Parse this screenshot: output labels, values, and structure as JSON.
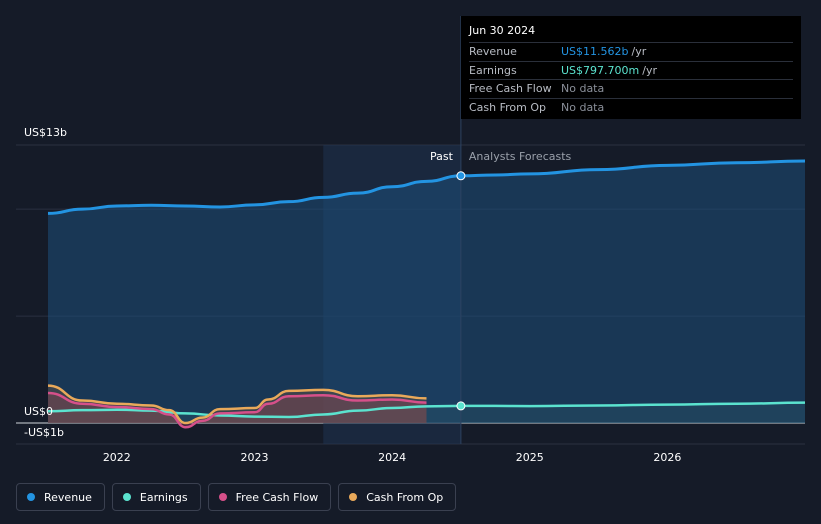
{
  "tooltip": {
    "date": "Jun 30 2024",
    "rows": [
      {
        "label": "Revenue",
        "value": "US$11.562b",
        "unit": "/yr",
        "color": "#2394e2"
      },
      {
        "label": "Earnings",
        "value": "US$797.700m",
        "unit": "/yr",
        "color": "#5be3cf"
      },
      {
        "label": "Free Cash Flow",
        "value": "No data",
        "unit": "",
        "color": "#8a8f99"
      },
      {
        "label": "Cash From Op",
        "value": "No data",
        "unit": "",
        "color": "#8a8f99"
      }
    ]
  },
  "legend": [
    {
      "label": "Revenue",
      "color": "#2394e2"
    },
    {
      "label": "Earnings",
      "color": "#5be3cf"
    },
    {
      "label": "Free Cash Flow",
      "color": "#d6508a"
    },
    {
      "label": "Cash From Op",
      "color": "#e9a95a"
    }
  ],
  "chart_data": {
    "type": "line",
    "ytick_labels": [
      "US$13b",
      "US$0",
      "-US$1b"
    ],
    "y_ticks": [
      13,
      0,
      -1
    ],
    "ylim": [
      -1,
      13
    ],
    "xlim": [
      2021.5,
      2027.0
    ],
    "x_ticks": [
      2022,
      2023,
      2024,
      2025,
      2026
    ],
    "xtick_labels": [
      "2022",
      "2023",
      "2024",
      "2025",
      "2026"
    ],
    "past_label": "Past",
    "forecast_label": "Analysts Forecasts",
    "past_divider_x": 2024.5,
    "highlight_start_x": 2023.5,
    "series": [
      {
        "name": "Revenue",
        "color": "#2394e2",
        "x": [
          2021.5,
          2021.75,
          2022.0,
          2022.25,
          2022.5,
          2022.75,
          2023.0,
          2023.25,
          2023.5,
          2023.75,
          2024.0,
          2024.25,
          2024.5,
          2024.75,
          2025.0,
          2025.5,
          2026.0,
          2026.5,
          2027.0
        ],
        "y": [
          9.8,
          10.0,
          10.15,
          10.18,
          10.15,
          10.1,
          10.2,
          10.35,
          10.55,
          10.75,
          11.05,
          11.3,
          11.56,
          11.6,
          11.65,
          11.85,
          12.05,
          12.17,
          12.25
        ]
      },
      {
        "name": "Earnings",
        "color": "#5be3cf",
        "x": [
          2021.5,
          2021.75,
          2022.0,
          2022.25,
          2022.5,
          2022.75,
          2023.0,
          2023.25,
          2023.5,
          2023.75,
          2024.0,
          2024.25,
          2024.5,
          2024.75,
          2025.0,
          2025.5,
          2026.0,
          2026.5,
          2027.0
        ],
        "y": [
          0.55,
          0.6,
          0.62,
          0.58,
          0.45,
          0.35,
          0.3,
          0.28,
          0.4,
          0.58,
          0.7,
          0.78,
          0.8,
          0.8,
          0.79,
          0.82,
          0.86,
          0.9,
          0.95
        ]
      },
      {
        "name": "Free Cash Flow",
        "color": "#d6508a",
        "x": [
          2021.5,
          2021.75,
          2022.0,
          2022.25,
          2022.38,
          2022.5,
          2022.62,
          2022.75,
          2023.0,
          2023.1,
          2023.25,
          2023.5,
          2023.75,
          2024.0,
          2024.25
        ],
        "y": [
          1.4,
          0.9,
          0.75,
          0.65,
          0.4,
          -0.2,
          0.1,
          0.45,
          0.5,
          0.9,
          1.25,
          1.3,
          1.05,
          1.1,
          0.95
        ]
      },
      {
        "name": "Cash From Op",
        "color": "#e9a95a",
        "x": [
          2021.5,
          2021.75,
          2022.0,
          2022.25,
          2022.38,
          2022.5,
          2022.62,
          2022.75,
          2023.0,
          2023.1,
          2023.25,
          2023.5,
          2023.75,
          2024.0,
          2024.25
        ],
        "y": [
          1.75,
          1.05,
          0.9,
          0.82,
          0.6,
          0.0,
          0.25,
          0.65,
          0.7,
          1.1,
          1.5,
          1.55,
          1.25,
          1.3,
          1.15
        ]
      }
    ],
    "markers": [
      {
        "series": "Revenue",
        "x": 2024.5,
        "y": 11.56
      },
      {
        "series": "Earnings",
        "x": 2024.5,
        "y": 0.8
      }
    ]
  }
}
